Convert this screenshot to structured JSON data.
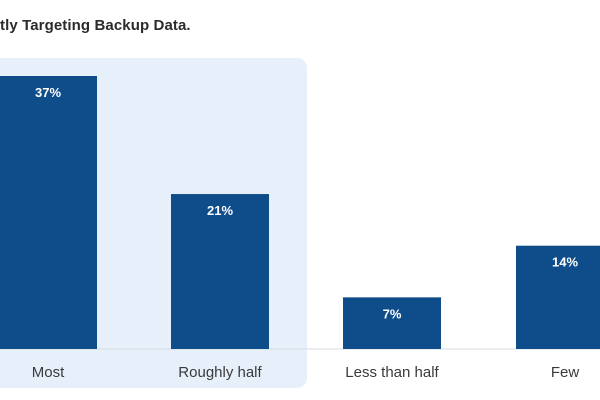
{
  "title": "tly Targeting Backup Data.",
  "colors": {
    "bar": "#0f4c8a",
    "highlight": "#e7f0fa",
    "axis": "#d6dbe0"
  },
  "chart_data": {
    "type": "bar",
    "categories": [
      "Most",
      "Roughly half",
      "Less than half",
      "Few"
    ],
    "values": [
      37,
      21,
      7,
      14
    ],
    "value_labels": [
      "37%",
      "21%",
      "7%",
      "14%"
    ],
    "title": "tly Targeting Backup Data.",
    "xlabel": "",
    "ylabel": "",
    "ylim": [
      0,
      40
    ],
    "grid": false,
    "highlighted_categories": [
      "Most",
      "Roughly half"
    ]
  }
}
